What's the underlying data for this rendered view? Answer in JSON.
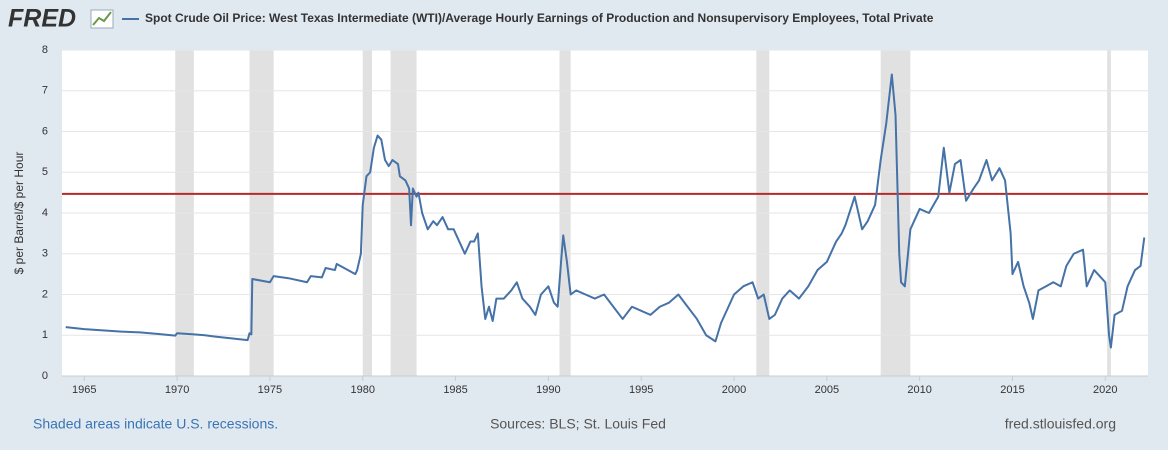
{
  "chart_data": {
    "type": "line",
    "logo": "FRED",
    "ylabel": "$ per Barrel/$ per Hour",
    "notes": "Shaded areas indicate U.S. recessions.",
    "source": "Sources: BLS; St. Louis Fed",
    "site": "fred.stlouisfed.org",
    "xlim": [
      1963.8,
      2022.3
    ],
    "ylim": [
      0,
      8
    ],
    "xticks": [
      1965,
      1970,
      1975,
      1980,
      1985,
      1990,
      1995,
      2000,
      2005,
      2010,
      2015,
      2020
    ],
    "yticks": [
      0,
      1,
      2,
      3,
      4,
      5,
      6,
      7,
      8
    ],
    "grid": true,
    "recessions": [
      [
        1969.9,
        1970.9
      ],
      [
        1973.9,
        1975.2
      ],
      [
        1980.0,
        1980.5
      ],
      [
        1981.5,
        1982.9
      ],
      [
        1990.6,
        1991.2
      ],
      [
        2001.2,
        2001.9
      ],
      [
        2007.9,
        2009.5
      ],
      [
        2020.1,
        2020.3
      ]
    ],
    "recession_color": "#e1e1e1",
    "reference_line": {
      "value": 4.47,
      "color": "#b52a2a"
    },
    "x": [
      1964.0,
      1965.0,
      1966.0,
      1967.0,
      1968.0,
      1969.0,
      1969.9,
      1970.0,
      1971.0,
      1971.5,
      1972.0,
      1973.0,
      1973.8,
      1973.9,
      1974.0,
      1974.05,
      1975.0,
      1975.2,
      1976.0,
      1977.0,
      1977.2,
      1977.8,
      1978.0,
      1978.5,
      1978.6,
      1979.0,
      1979.6,
      1979.7,
      1979.9,
      1980.0,
      1980.2,
      1980.4,
      1980.6,
      1980.8,
      1981.0,
      1981.2,
      1981.4,
      1981.6,
      1981.9,
      1982.0,
      1982.3,
      1982.5,
      1982.6,
      1982.7,
      1982.9,
      1983.0,
      1983.2,
      1983.5,
      1983.8,
      1984.0,
      1984.3,
      1984.6,
      1984.9,
      1985.2,
      1985.5,
      1985.8,
      1986.0,
      1986.2,
      1986.4,
      1986.6,
      1986.8,
      1987.0,
      1987.2,
      1987.6,
      1988.0,
      1988.3,
      1988.6,
      1989.0,
      1989.3,
      1989.6,
      1990.0,
      1990.3,
      1990.5,
      1990.7,
      1990.8,
      1991.0,
      1991.2,
      1991.5,
      1992.0,
      1992.5,
      1993.0,
      1993.5,
      1994.0,
      1994.5,
      1995.0,
      1995.5,
      1996.0,
      1996.5,
      1997.0,
      1997.5,
      1998.0,
      1998.5,
      1999.0,
      1999.3,
      1999.7,
      2000.0,
      2000.5,
      2001.0,
      2001.3,
      2001.6,
      2001.9,
      2002.2,
      2002.6,
      2003.0,
      2003.5,
      2004.0,
      2004.5,
      2005.0,
      2005.5,
      2005.8,
      2006.0,
      2006.5,
      2006.9,
      2007.2,
      2007.6,
      2007.9,
      2008.2,
      2008.5,
      2008.7,
      2008.9,
      2009.0,
      2009.2,
      2009.5,
      2009.8,
      2010.0,
      2010.5,
      2011.0,
      2011.3,
      2011.6,
      2011.9,
      2012.2,
      2012.5,
      2012.9,
      2013.2,
      2013.6,
      2013.9,
      2014.3,
      2014.6,
      2014.9,
      2015.0,
      2015.3,
      2015.6,
      2015.9,
      2016.1,
      2016.4,
      2016.8,
      2017.2,
      2017.6,
      2017.9,
      2018.3,
      2018.8,
      2019.0,
      2019.4,
      2019.8,
      2020.0,
      2020.2,
      2020.3,
      2020.5,
      2020.9,
      2021.2,
      2021.6,
      2021.9,
      2022.1
    ],
    "series": [
      {
        "name": "Spot Crude Oil Price: West Texas Intermediate (WTI)/Average Hourly Earnings of Production and Nonsupervisory Employees, Total Private",
        "color": "#4572a7",
        "values": [
          1.2,
          1.15,
          1.12,
          1.09,
          1.07,
          1.03,
          0.99,
          1.05,
          1.02,
          1.0,
          0.97,
          0.92,
          0.88,
          1.05,
          1.02,
          2.38,
          2.3,
          2.45,
          2.4,
          2.3,
          2.45,
          2.42,
          2.65,
          2.6,
          2.75,
          2.65,
          2.5,
          2.6,
          3.0,
          4.2,
          4.9,
          5.0,
          5.6,
          5.9,
          5.8,
          5.3,
          5.15,
          5.3,
          5.2,
          4.9,
          4.8,
          4.6,
          3.7,
          4.6,
          4.4,
          4.5,
          4.0,
          3.6,
          3.8,
          3.7,
          3.9,
          3.6,
          3.6,
          3.3,
          3.0,
          3.3,
          3.3,
          3.5,
          2.2,
          1.4,
          1.7,
          1.35,
          1.9,
          1.9,
          2.1,
          2.3,
          1.9,
          1.7,
          1.5,
          2.0,
          2.2,
          1.8,
          1.7,
          2.9,
          3.45,
          2.8,
          2.0,
          2.1,
          2.0,
          1.9,
          2.0,
          1.7,
          1.4,
          1.7,
          1.6,
          1.5,
          1.7,
          1.8,
          2.0,
          1.7,
          1.4,
          1.0,
          0.85,
          1.3,
          1.7,
          2.0,
          2.2,
          2.3,
          1.9,
          2.0,
          1.4,
          1.5,
          1.9,
          2.1,
          1.9,
          2.2,
          2.6,
          2.8,
          3.3,
          3.5,
          3.7,
          4.4,
          3.6,
          3.8,
          4.2,
          5.3,
          6.2,
          7.4,
          6.4,
          3.0,
          2.3,
          2.2,
          3.6,
          3.9,
          4.1,
          4.0,
          4.4,
          5.6,
          4.5,
          5.2,
          5.3,
          4.3,
          4.6,
          4.8,
          5.3,
          4.8,
          5.1,
          4.8,
          3.5,
          2.5,
          2.8,
          2.2,
          1.8,
          1.4,
          2.1,
          2.2,
          2.3,
          2.2,
          2.7,
          3.0,
          3.1,
          2.2,
          2.6,
          2.4,
          2.3,
          1.0,
          0.7,
          1.5,
          1.6,
          2.2,
          2.6,
          2.7,
          3.4
        ]
      }
    ]
  }
}
